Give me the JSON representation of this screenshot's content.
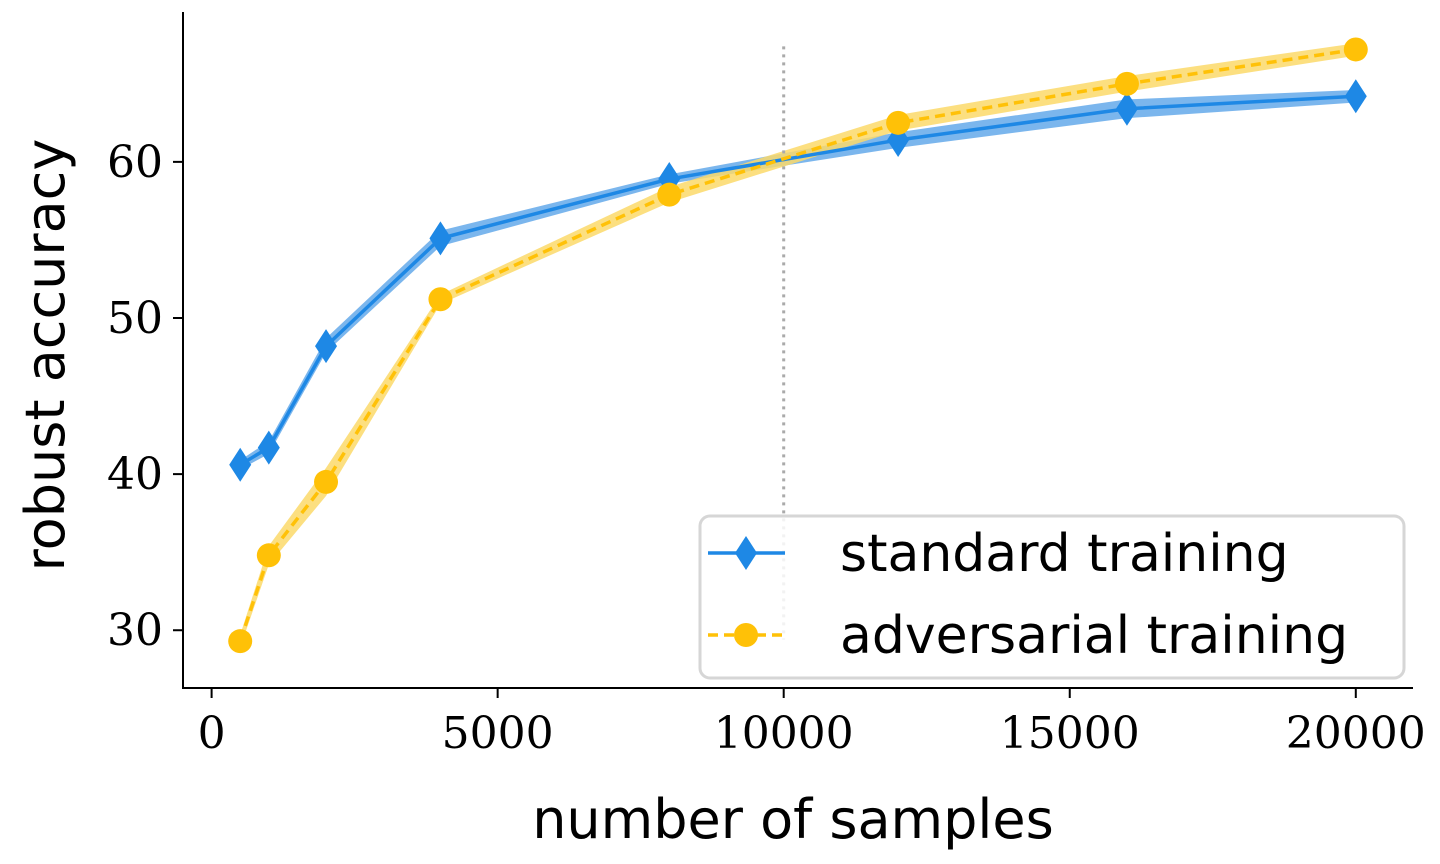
{
  "chart_data": {
    "type": "line",
    "xlabel": "number of samples",
    "ylabel": "robust accuracy",
    "xlim": [
      -500,
      21000
    ],
    "ylim": [
      26.3,
      69.6
    ],
    "x_ticks": [
      0,
      5000,
      10000,
      15000,
      20000
    ],
    "x_tick_labels": [
      "0",
      "5000",
      "10000",
      "15000",
      "20000"
    ],
    "y_ticks": [
      30,
      40,
      50,
      60
    ],
    "y_tick_labels": [
      "30",
      "40",
      "50",
      "60"
    ],
    "vertical_reference_line": {
      "x": 10000,
      "style": "dotted",
      "color": "#aaaaaa"
    },
    "grid": false,
    "legend_position": "bottom-right",
    "series": [
      {
        "name": "standard training",
        "color": "#1e88e5",
        "band_color": "#64a9ea",
        "marker": "diamond",
        "line_style": "solid",
        "x": [
          500,
          1000,
          2000,
          4000,
          8000,
          12000,
          16000,
          20000
        ],
        "values": [
          40.6,
          41.7,
          48.2,
          55.1,
          58.9,
          61.4,
          63.4,
          64.2
        ],
        "band_low": [
          40.3,
          41.3,
          47.8,
          54.6,
          58.6,
          60.9,
          62.8,
          63.8
        ],
        "band_high": [
          40.9,
          42.1,
          48.7,
          55.6,
          59.2,
          61.9,
          64.0,
          64.6
        ]
      },
      {
        "name": "adversarial training",
        "color": "#ffc107",
        "band_color": "#fcd96a",
        "marker": "circle",
        "line_style": "dashed",
        "x": [
          500,
          1000,
          2000,
          4000,
          8000,
          12000,
          16000,
          20000
        ],
        "values": [
          29.3,
          34.8,
          39.5,
          51.2,
          57.9,
          62.5,
          65.0,
          67.2
        ],
        "band_low": [
          28.9,
          34.2,
          38.6,
          50.9,
          57.4,
          62.0,
          64.5,
          66.8
        ],
        "band_high": [
          29.7,
          35.4,
          40.4,
          51.5,
          58.4,
          63.0,
          65.5,
          67.6
        ]
      }
    ]
  }
}
